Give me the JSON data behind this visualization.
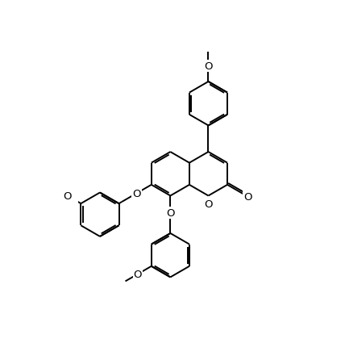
{
  "background_color": "#ffffff",
  "line_color": "#000000",
  "lw": 1.4,
  "fs": 9.5,
  "dbo": 0.055,
  "figsize": [
    4.28,
    4.52
  ],
  "dpi": 100,
  "xlim": [
    -0.3,
    5.8
  ],
  "ylim": [
    -0.5,
    8.2
  ]
}
